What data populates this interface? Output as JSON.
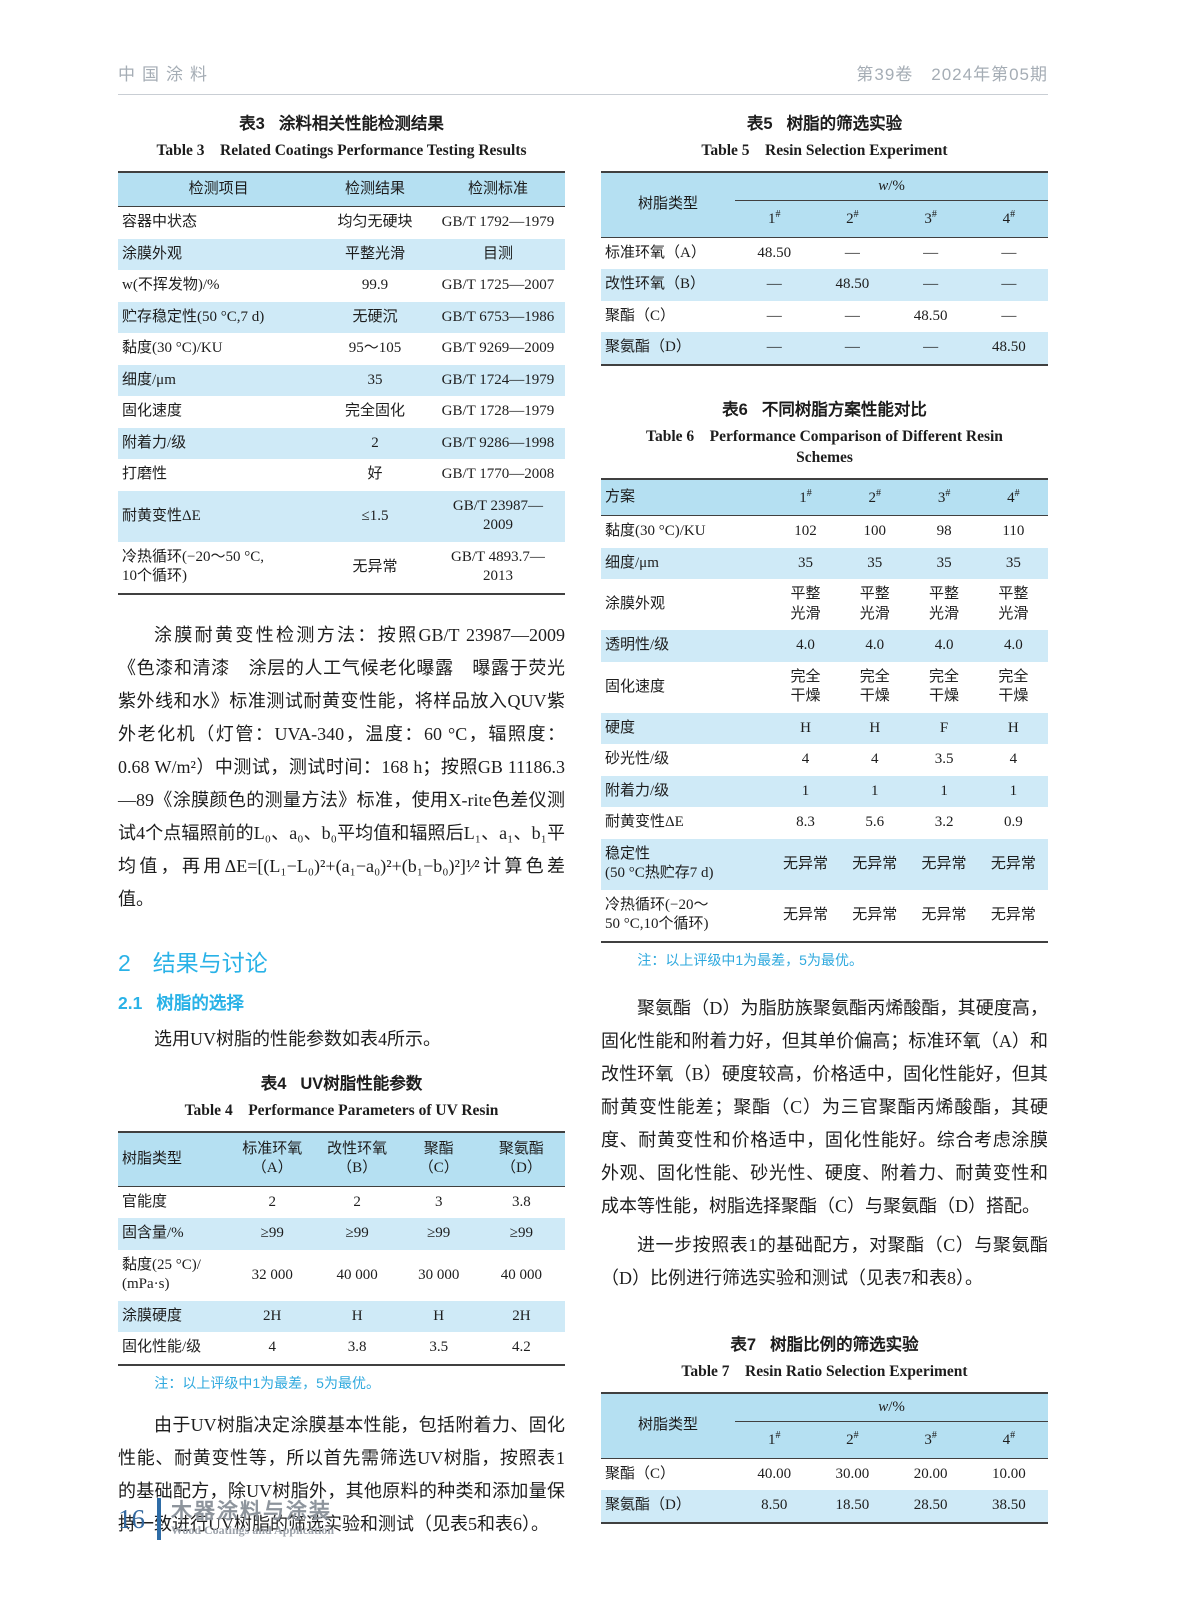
{
  "header": {
    "journal": "中国涂料",
    "issue": "第39卷　2024年第05期"
  },
  "sections": {
    "s2": {
      "num": "2",
      "title": "结果与讨论"
    },
    "s21": {
      "num": "2.1",
      "title": "树脂的选择"
    }
  },
  "paragraphs": {
    "left_method": "涂膜耐黄变性检测方法：按照GB/T 23987—2009《色漆和清漆　涂层的人工气候老化曝露　曝露于荧光紫外线和水》标准测试耐黄变性能，将样品放入QUV紫外老化机（灯管：UVA-340，温度：60 °C，辐照度：0.68 W/m²）中测试，测试时间：168 h；按照GB 11186.3—89《涂膜颜色的测量方法》标准，使用X-rite色差仪测试4个点辐照前的L₀、a₀、b₀平均值和辐照后L₁、a₁、b₁平均值，再用ΔE=[(L₁−L₀)²+(a₁−a₀)²+(b₁−b₀)²]¹⁄²计算色差值。",
    "select_intro": "选用UV树脂的性能参数如表4所示。",
    "left_uv": "由于UV树脂决定涂膜基本性能，包括附着力、固化性能、耐黄变性等，所以首先需筛选UV树脂，按照表1的基础配方，除UV树脂外，其他原料的种类和添加量保持一致进行UV树脂的筛选实验和测试（见表5和表6）。",
    "right_resin": "聚氨酯（D）为脂肪族聚氨酯丙烯酸酯，其硬度高，固化性能和附着力好，但其单价偏高；标准环氧（A）和改性环氧（B）硬度较高，价格适中，固化性能好，但其耐黄变性能差；聚酯（C）为三官聚酯丙烯酸酯，其硬度、耐黄变性和价格适中，固化性能好。综合考虑涂膜外观、固化性能、砂光性、硬度、附着力、耐黄变性和成本等性能，树脂选择聚酯（C）与聚氨酯（D）搭配。",
    "right_further": "进一步按照表1的基础配方，对聚酯（C）与聚氨酯（D）比例进行筛选实验和测试（见表7和表8）。"
  },
  "table3": {
    "title_zh_no": "表3",
    "title_zh": "涂料相关性能检测结果",
    "title_en": "Table 3　Related Coatings Performance Testing Results",
    "columns": [
      "检测项目",
      "检测结果",
      "检测标准"
    ],
    "rows": [
      [
        "容器中状态",
        "均匀无硬块",
        "GB/T 1792—1979"
      ],
      [
        "涂膜外观",
        "平整光滑",
        "目测"
      ],
      [
        "w(不挥发物)/%",
        "99.9",
        "GB/T 1725—2007"
      ],
      [
        "贮存稳定性(50 °C,7 d)",
        "无硬沉",
        "GB/T 6753—1986"
      ],
      [
        "黏度(30 °C)/KU",
        "95～105",
        "GB/T 9269—2009"
      ],
      [
        "细度/μm",
        "35",
        "GB/T 1724—1979"
      ],
      [
        "固化速度",
        "完全固化",
        "GB/T 1728—1979"
      ],
      [
        "附着力/级",
        "2",
        "GB/T 9286—1998"
      ],
      [
        "打磨性",
        "好",
        "GB/T 1770—2008"
      ],
      [
        "耐黄变性ΔE",
        "≤1.5",
        "GB/T 23987—\n2009"
      ],
      [
        "冷热循环(−20～50 °C,\n10个循环)",
        "无异常",
        "GB/T 4893.7—\n2013"
      ]
    ]
  },
  "table4": {
    "title_zh_no": "表4",
    "title_zh": "UV树脂性能参数",
    "title_en": "Table 4　Performance Parameters of UV Resin",
    "columns": [
      "树脂类型",
      "标准环氧\n（A）",
      "改性环氧\n（B）",
      "聚酯\n（C）",
      "聚氨酯\n（D）"
    ],
    "rows": [
      [
        "官能度",
        "2",
        "2",
        "3",
        "3.8"
      ],
      [
        "固含量/%",
        "≥99",
        "≥99",
        "≥99",
        "≥99"
      ],
      [
        "黏度(25 °C)/\n(mPa·s)",
        "32 000",
        "40 000",
        "30 000",
        "40 000"
      ],
      [
        "涂膜硬度",
        "2H",
        "H",
        "H",
        "2H"
      ],
      [
        "固化性能/级",
        "4",
        "3.8",
        "3.5",
        "4.2"
      ]
    ],
    "note": "注：以上评级中1为最差，5为最优。"
  },
  "table5": {
    "title_zh_no": "表5",
    "title_zh": "树脂的筛选实验",
    "title_en": "Table 5　Resin Selection Experiment",
    "head": {
      "label": "树脂类型",
      "group_w": "w",
      "group_rest": "/%",
      "subs": [
        "1^#",
        "2^#",
        "3^#",
        "4^#"
      ]
    },
    "rows": [
      [
        "标准环氧（A）",
        "48.50",
        "—",
        "—",
        "—"
      ],
      [
        "改性环氧（B）",
        "—",
        "48.50",
        "—",
        "—"
      ],
      [
        "聚酯（C）",
        "—",
        "—",
        "48.50",
        "—"
      ],
      [
        "聚氨酯（D）",
        "—",
        "—",
        "—",
        "48.50"
      ]
    ]
  },
  "table6": {
    "title_zh_no": "表6",
    "title_zh": "不同树脂方案性能对比",
    "title_en": "Table 6　Performance Comparison of Different Resin Schemes",
    "columns": [
      "方案",
      "1^#",
      "2^#",
      "3^#",
      "4^#"
    ],
    "rows": [
      [
        "黏度(30 °C)/KU",
        "102",
        "100",
        "98",
        "110"
      ],
      [
        "细度/μm",
        "35",
        "35",
        "35",
        "35"
      ],
      [
        "涂膜外观",
        "平整\n光滑",
        "平整\n光滑",
        "平整\n光滑",
        "平整\n光滑"
      ],
      [
        "透明性/级",
        "4.0",
        "4.0",
        "4.0",
        "4.0"
      ],
      [
        "固化速度",
        "完全\n干燥",
        "完全\n干燥",
        "完全\n干燥",
        "完全\n干燥"
      ],
      [
        "硬度",
        "H",
        "H",
        "F",
        "H"
      ],
      [
        "砂光性/级",
        "4",
        "4",
        "3.5",
        "4"
      ],
      [
        "附着力/级",
        "1",
        "1",
        "1",
        "1"
      ],
      [
        "耐黄变性ΔE",
        "8.3",
        "5.6",
        "3.2",
        "0.9"
      ],
      [
        "稳定性\n(50 °C热贮存7 d)",
        "无异常",
        "无异常",
        "无异常",
        "无异常"
      ],
      [
        "冷热循环(−20～\n50 °C,10个循环)",
        "无异常",
        "无异常",
        "无异常",
        "无异常"
      ]
    ],
    "note": "注：以上评级中1为最差，5为最优。"
  },
  "table7": {
    "title_zh_no": "表7",
    "title_zh": "树脂比例的筛选实验",
    "title_en": "Table 7　Resin Ratio Selection Experiment",
    "head": {
      "label": "树脂类型",
      "group_w": "w",
      "group_rest": "/%",
      "subs": [
        "1^#",
        "2^#",
        "3^#",
        "4^#"
      ]
    },
    "rows": [
      [
        "聚酯（C）",
        "40.00",
        "30.00",
        "20.00",
        "10.00"
      ],
      [
        "聚氨酯（D）",
        "8.50",
        "18.50",
        "28.50",
        "38.50"
      ]
    ]
  },
  "footer": {
    "page": "16",
    "name_zh": "木器涂料与涂装",
    "name_en": "Wood Coatings and Application"
  }
}
